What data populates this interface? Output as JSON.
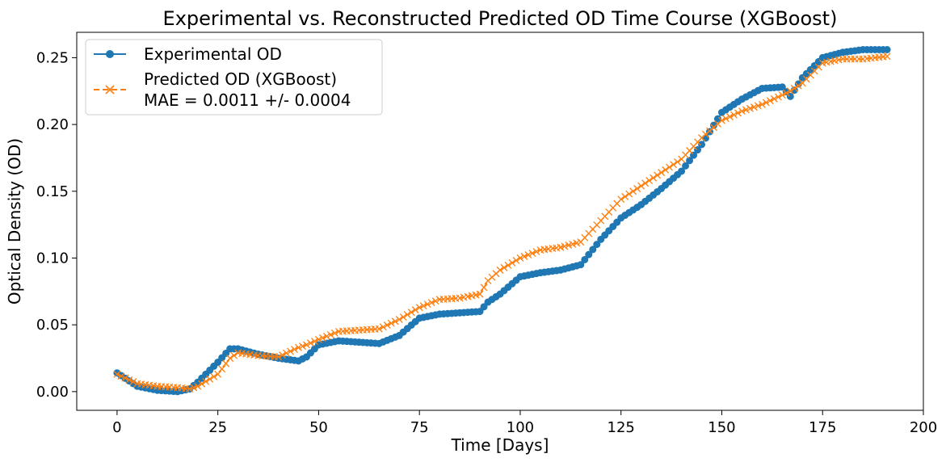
{
  "chart_data": {
    "type": "line",
    "title": "Experimental vs. Reconstructed Predicted OD Time Course (XGBoost)",
    "xlabel": "Time [Days]",
    "ylabel": "Optical Density (OD)",
    "xlim": [
      -10,
      200
    ],
    "ylim": [
      -0.014,
      0.269
    ],
    "x_ticks": [
      0,
      25,
      50,
      75,
      100,
      125,
      150,
      175,
      200
    ],
    "x_tick_labels": [
      "0",
      "25",
      "50",
      "75",
      "100",
      "125",
      "150",
      "175",
      "200"
    ],
    "y_ticks": [
      0.0,
      0.05,
      0.1,
      0.15,
      0.2,
      0.25
    ],
    "y_tick_labels": [
      "0.00",
      "0.05",
      "0.10",
      "0.15",
      "0.20",
      "0.25"
    ],
    "grid": false,
    "legend_position": "upper-left",
    "x": [
      0,
      5,
      10,
      15,
      18,
      20,
      25,
      28,
      30,
      35,
      40,
      45,
      47,
      50,
      55,
      60,
      65,
      70,
      75,
      80,
      85,
      90,
      92,
      95,
      100,
      105,
      110,
      115,
      120,
      125,
      130,
      135,
      140,
      145,
      150,
      155,
      160,
      165,
      167,
      170,
      175,
      180,
      185,
      191
    ],
    "series": [
      {
        "name": "Experimental OD",
        "color": "#1f77b4",
        "marker": "circle",
        "line_style": "solid",
        "values": [
          0.014,
          0.004,
          0.001,
          0.0,
          0.002,
          0.007,
          0.022,
          0.032,
          0.032,
          0.028,
          0.025,
          0.023,
          0.026,
          0.035,
          0.038,
          0.037,
          0.036,
          0.042,
          0.055,
          0.058,
          0.059,
          0.06,
          0.067,
          0.073,
          0.086,
          0.089,
          0.091,
          0.095,
          0.114,
          0.13,
          0.14,
          0.152,
          0.165,
          0.185,
          0.209,
          0.219,
          0.227,
          0.228,
          0.221,
          0.235,
          0.25,
          0.254,
          0.256,
          0.256
        ]
      },
      {
        "name": "Predicted OD (XGBoost)",
        "label_line2": "MAE = 0.0011 +/- 0.0004",
        "color": "#ff7f0e",
        "marker": "x",
        "line_style": "dashed",
        "values": [
          0.013,
          0.006,
          0.004,
          0.003,
          0.002,
          0.004,
          0.013,
          0.025,
          0.029,
          0.027,
          0.026,
          0.033,
          0.035,
          0.039,
          0.045,
          0.046,
          0.047,
          0.054,
          0.063,
          0.069,
          0.07,
          0.073,
          0.083,
          0.091,
          0.1,
          0.106,
          0.108,
          0.112,
          0.128,
          0.144,
          0.154,
          0.164,
          0.174,
          0.19,
          0.203,
          0.21,
          0.215,
          0.222,
          0.225,
          0.231,
          0.246,
          0.249,
          0.249,
          0.251
        ]
      }
    ]
  }
}
